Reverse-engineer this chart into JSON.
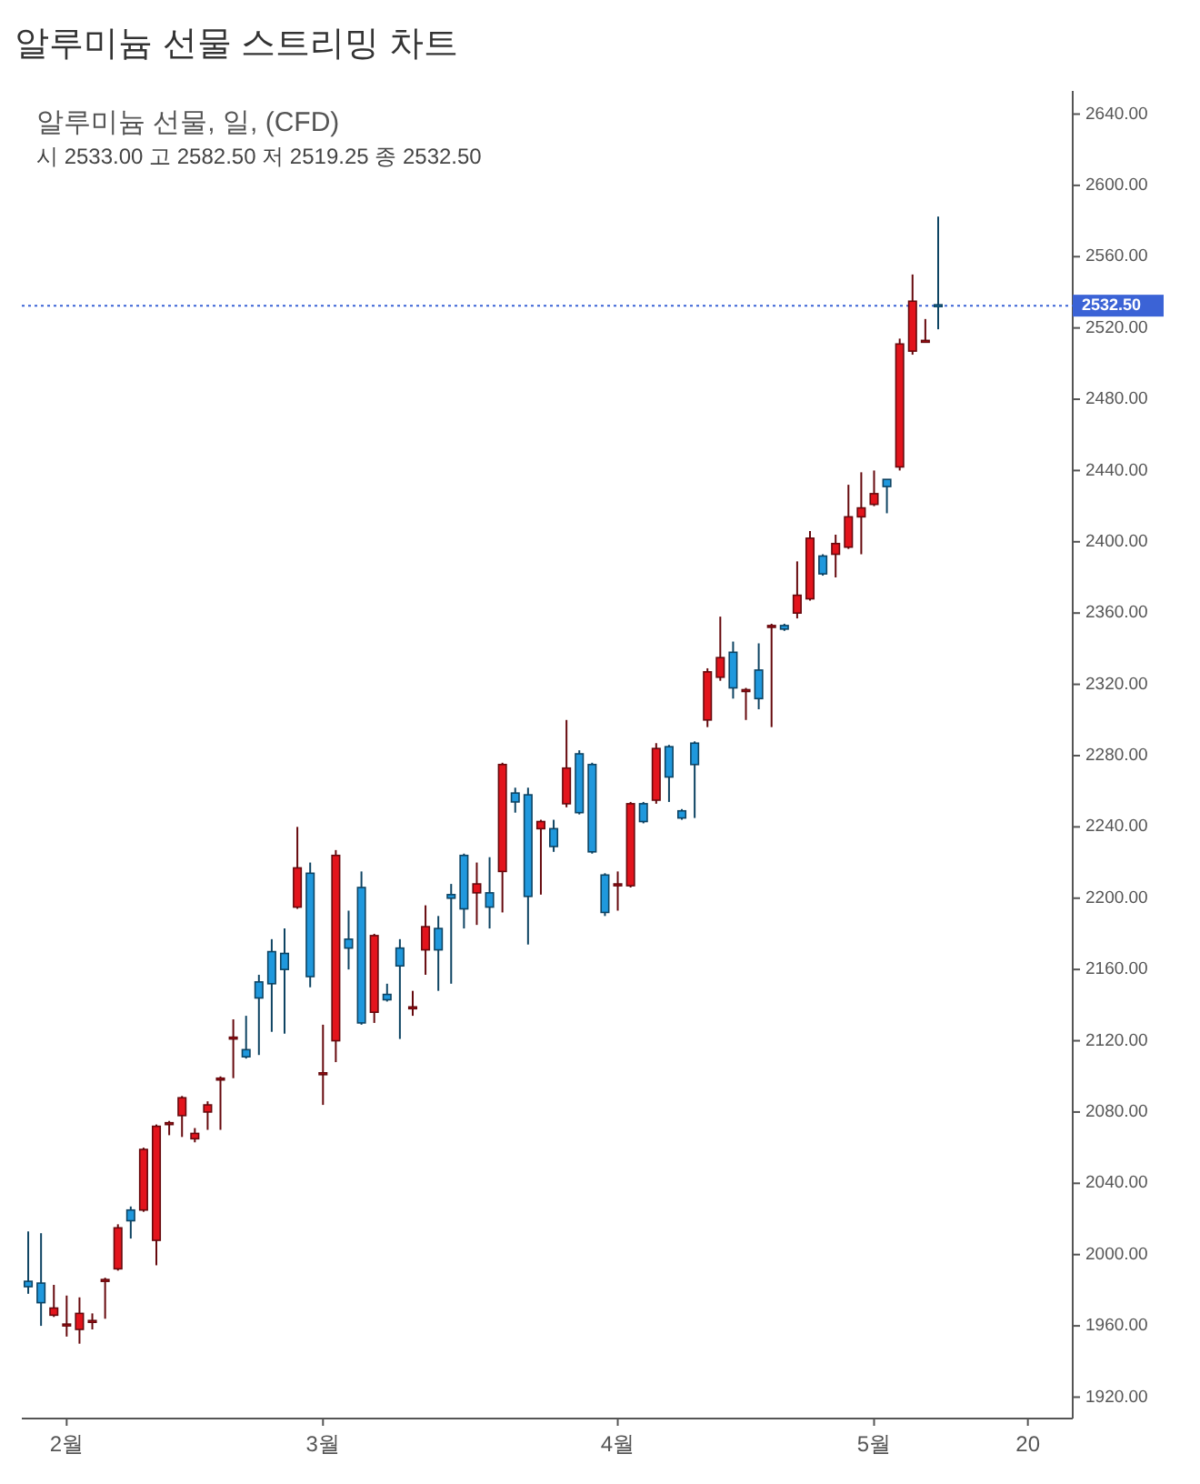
{
  "chart_data": {
    "type": "candlestick",
    "title": "알루미늄 선물 스트리밍 차트",
    "subtitle": "알루미늄 선물, 일, (CFD)",
    "annotations": [
      "시 2533.00 고 2582.50 저 2519.25 종 2532.50"
    ],
    "categories": [
      null,
      null,
      null,
      "2월",
      null,
      null,
      null,
      null,
      null,
      null,
      null,
      null,
      null,
      null,
      null,
      null,
      null,
      null,
      null,
      null,
      null,
      null,
      null,
      "3월",
      null,
      null,
      null,
      null,
      null,
      null,
      null,
      null,
      null,
      null,
      null,
      null,
      null,
      null,
      null,
      null,
      null,
      null,
      null,
      null,
      null,
      null,
      "4월",
      null,
      null,
      null,
      null,
      null,
      null,
      null,
      null,
      null,
      null,
      null,
      null,
      null,
      null,
      null,
      null,
      null,
      null,
      null,
      "5월",
      null,
      null,
      null,
      null,
      null,
      null,
      null,
      null,
      null,
      null,
      null,
      "20",
      null,
      null,
      null
    ],
    "ohlc": [
      [
        1985,
        2013,
        1978,
        1982
      ],
      [
        1984,
        2012,
        1960,
        1973
      ],
      [
        1966,
        1983,
        1965,
        1970
      ],
      [
        1960,
        1977,
        1954,
        1961
      ],
      [
        1958,
        1976,
        1950,
        1967
      ],
      [
        1962,
        1967,
        1958,
        1963
      ],
      [
        1985,
        1987,
        1964,
        1986
      ],
      [
        1992,
        2017,
        1991,
        2015
      ],
      [
        2025,
        2027,
        2009,
        2019
      ],
      [
        2025,
        2060,
        2024,
        2059
      ],
      [
        2008,
        2073,
        1994,
        2072
      ],
      [
        2073,
        2075,
        2067,
        2074
      ],
      [
        2078,
        2089,
        2066,
        2088
      ],
      [
        2065,
        2071,
        2063,
        2068
      ],
      [
        2080,
        2086,
        2070,
        2084
      ],
      [
        2098,
        2100,
        2070,
        2099
      ],
      [
        2121,
        2132,
        2099,
        2122
      ],
      [
        2115,
        2134,
        2110,
        2111
      ],
      [
        2153,
        2157,
        2112,
        2144
      ],
      [
        2170,
        2177,
        2125,
        2152
      ],
      [
        2169,
        2183,
        2124,
        2160
      ],
      [
        2195,
        2240,
        2194,
        2217
      ],
      [
        2214,
        2220,
        2150,
        2156
      ],
      [
        2101,
        2129,
        2084,
        2102
      ],
      [
        2120,
        2227,
        2108,
        2224
      ],
      [
        2177,
        2193,
        2160,
        2172
      ],
      [
        2206,
        2215,
        2129,
        2130
      ],
      [
        2136,
        2180,
        2130,
        2179
      ],
      [
        2146,
        2152,
        2142,
        2143
      ],
      [
        2172,
        2177,
        2121,
        2162
      ],
      [
        2138,
        2148,
        2134,
        2139
      ],
      [
        2171,
        2196,
        2157,
        2184
      ],
      [
        2183,
        2190,
        2148,
        2171
      ],
      [
        2202,
        2208,
        2152,
        2200
      ],
      [
        2224,
        2225,
        2183,
        2194
      ],
      [
        2203,
        2220,
        2185,
        2208
      ],
      [
        2203,
        2223,
        2183,
        2195
      ],
      [
        2215,
        2276,
        2192,
        2275
      ],
      [
        2259,
        2262,
        2248,
        2254
      ],
      [
        2258,
        2262,
        2174,
        2201
      ],
      [
        2239,
        2244,
        2202,
        2243
      ],
      [
        2239,
        2244,
        2226,
        2229
      ],
      [
        2253,
        2300,
        2251,
        2273
      ],
      [
        2281,
        2283,
        2247,
        2248
      ],
      [
        2275,
        2276,
        2225,
        2226
      ],
      [
        2213,
        2214,
        2190,
        2192
      ],
      [
        2207,
        2215,
        2193,
        2208
      ],
      [
        2207,
        2254,
        2206,
        2253
      ],
      [
        2253,
        2254,
        2242,
        2243
      ],
      [
        2255,
        2287,
        2253,
        2284
      ],
      [
        2285,
        2286,
        2254,
        2268
      ],
      [
        2249,
        2250,
        2244,
        2245
      ],
      [
        2287,
        2288,
        2245,
        2275
      ],
      [
        2300,
        2329,
        2296,
        2327
      ],
      [
        2324,
        2358,
        2322,
        2335
      ],
      [
        2338,
        2344,
        2312,
        2318
      ],
      [
        2316,
        2318,
        2300,
        2317
      ],
      [
        2328,
        2343,
        2306,
        2312
      ],
      [
        2352,
        2354,
        2296,
        2353
      ],
      [
        2353,
        2354,
        2350,
        2351
      ],
      [
        2360,
        2389,
        2357,
        2370
      ],
      [
        2368,
        2406,
        2367,
        2402
      ],
      [
        2392,
        2393,
        2381,
        2382
      ],
      [
        2393,
        2404,
        2380,
        2399
      ],
      [
        2397,
        2432,
        2396,
        2414
      ],
      [
        2414,
        2439,
        2393,
        2419
      ],
      [
        2421,
        2440,
        2420,
        2427
      ],
      [
        2435,
        2435,
        2416,
        2431
      ],
      [
        2442,
        2514,
        2440,
        2511
      ],
      [
        2507,
        2550,
        2505,
        2535
      ],
      [
        2512,
        2525,
        2512,
        2513
      ],
      [
        2533,
        2582.5,
        2519.25,
        2532.5
      ],
      null,
      null,
      null,
      null,
      null,
      null,
      null,
      null,
      null,
      null
    ],
    "colors": [
      "#1f98dd",
      "#1f98dd",
      "#e3141c",
      "#e3141c",
      "#e3141c",
      "#e3141c",
      "#e3141c",
      "#e3141c",
      "#1f98dd",
      "#e3141c",
      "#e3141c",
      "#e3141c",
      "#e3141c",
      "#e3141c",
      "#e3141c",
      "#e3141c",
      "#e3141c",
      "#1f98dd",
      "#1f98dd",
      "#1f98dd",
      "#1f98dd",
      "#e3141c",
      "#1f98dd",
      "#e3141c",
      "#e3141c",
      "#1f98dd",
      "#1f98dd",
      "#e3141c",
      "#1f98dd",
      "#1f98dd",
      "#e3141c",
      "#e3141c",
      "#1f98dd",
      "#1f98dd",
      "#1f98dd",
      "#e3141c",
      "#1f98dd",
      "#e3141c",
      "#1f98dd",
      "#1f98dd",
      "#e3141c",
      "#1f98dd",
      "#e3141c",
      "#1f98dd",
      "#1f98dd",
      "#1f98dd",
      "#e3141c",
      "#e3141c",
      "#1f98dd",
      "#e3141c",
      "#1f98dd",
      "#1f98dd",
      "#1f98dd",
      "#e3141c",
      "#e3141c",
      "#1f98dd",
      "#e3141c",
      "#1f98dd",
      "#e3141c",
      "#1f98dd",
      "#e3141c",
      "#e3141c",
      "#1f98dd",
      "#e3141c",
      "#e3141c",
      "#e3141c",
      "#e3141c",
      "#1f98dd",
      "#e3141c",
      "#e3141c",
      "#e3141c",
      "#1f98dd",
      null,
      null,
      null,
      null,
      null,
      null,
      null,
      null,
      null,
      null
    ],
    "ylim": [
      1908,
      2653
    ],
    "yticks": [
      {
        "value": 1920,
        "label": "1920.00"
      },
      {
        "value": 1960,
        "label": "1960.00"
      },
      {
        "value": 2000,
        "label": "2000.00"
      },
      {
        "value": 2040,
        "label": "2040.00"
      },
      {
        "value": 2080,
        "label": "2080.00"
      },
      {
        "value": 2120,
        "label": "2120.00"
      },
      {
        "value": 2160,
        "label": "2160.00"
      },
      {
        "value": 2200,
        "label": "2200.00"
      },
      {
        "value": 2240,
        "label": "2240.00"
      },
      {
        "value": 2280,
        "label": "2280.00"
      },
      {
        "value": 2320,
        "label": "2320.00"
      },
      {
        "value": 2360,
        "label": "2360.00"
      },
      {
        "value": 2400,
        "label": "2400.00"
      },
      {
        "value": 2440,
        "label": "2440.00"
      },
      {
        "value": 2480,
        "label": "2480.00"
      },
      {
        "value": 2520,
        "label": "2520.00"
      },
      {
        "value": 2560,
        "label": "2560.00"
      },
      {
        "value": 2600,
        "label": "2600.00"
      },
      {
        "value": 2640,
        "label": "2640.00"
      }
    ],
    "ref_lines": [
      {
        "axis": "y",
        "value": 2532.5,
        "label": "2532.50",
        "color": "#3b63d6",
        "line_style": "dotted"
      }
    ]
  }
}
